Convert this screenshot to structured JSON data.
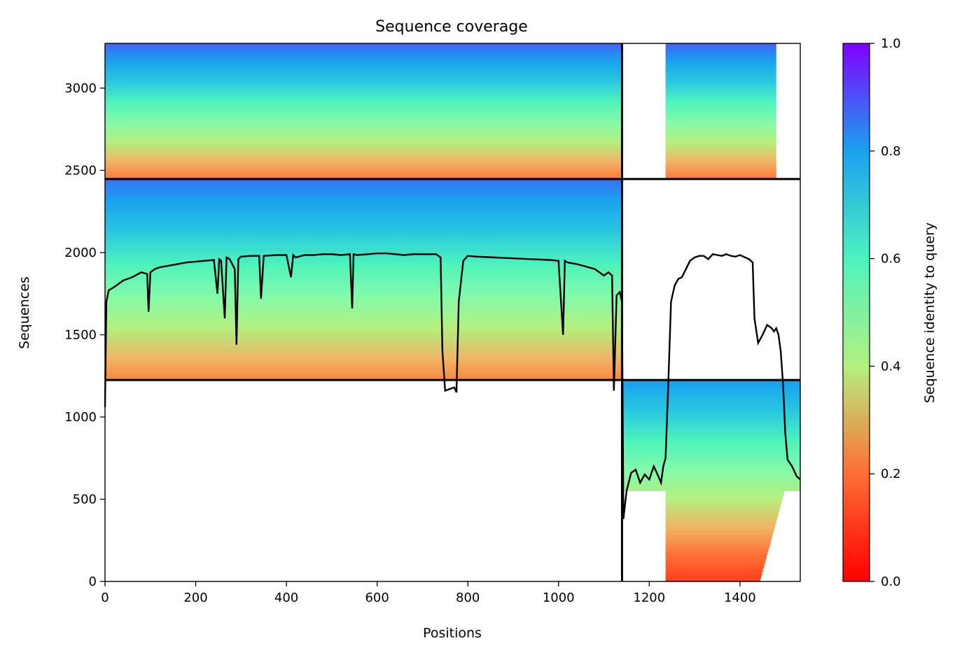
{
  "chart_data": {
    "type": "heatmap",
    "title": "Sequence coverage",
    "xlabel": "Positions",
    "ylabel": "Sequences",
    "xlim": [
      0,
      1533
    ],
    "ylim": [
      0,
      3272
    ],
    "xticks": [
      "0",
      "200",
      "400",
      "600",
      "800",
      "1000",
      "1200",
      "1400"
    ],
    "yticks": [
      "0",
      "500",
      "1000",
      "1500",
      "2000",
      "2500",
      "3000"
    ],
    "colorbar": {
      "label": "Sequence identity to query",
      "ticks": [
        "0.0",
        "0.2",
        "0.4",
        "0.6",
        "0.8",
        "1.0"
      ],
      "range": [
        0.0,
        1.0
      ],
      "colormap": "rainbow"
    },
    "chain_boundaries": {
      "x": [
        1140
      ],
      "y": [
        1225,
        2447
      ]
    },
    "blocks": [
      {
        "name": "chain-A-paired",
        "x": [
          0,
          1140
        ],
        "y": [
          2447,
          3272
        ],
        "identity_top": 0.88,
        "identity_bottom": 0.22
      },
      {
        "name": "chain-B-paired",
        "x": [
          1140,
          1533
        ],
        "y": [
          2447,
          3272
        ],
        "identity_top": 0.88,
        "identity_bottom": 0.22,
        "gaps_x": [
          [
            1140,
            1236
          ],
          [
            1480,
            1533
          ]
        ]
      },
      {
        "name": "chain-A-unpaired",
        "x": [
          0,
          1140
        ],
        "y": [
          1225,
          2447
        ],
        "identity_top": 0.86,
        "identity_bottom": 0.24
      },
      {
        "name": "chain-B-unpaired",
        "x": [
          1140,
          1533
        ],
        "y": [
          0,
          1225
        ],
        "identity_top": 0.8,
        "identity_bottom": 0.12
      }
    ],
    "coverage_line": {
      "x": [
        0,
        3,
        8,
        20,
        40,
        60,
        80,
        93,
        96,
        100,
        110,
        120,
        140,
        160,
        180,
        200,
        220,
        240,
        248,
        252,
        256,
        264,
        268,
        275,
        286,
        290,
        294,
        300,
        320,
        340,
        344,
        350,
        380,
        400,
        410,
        415,
        420,
        440,
        460,
        480,
        500,
        520,
        540,
        545,
        548,
        555,
        580,
        600,
        620,
        640,
        660,
        680,
        700,
        730,
        740,
        744,
        750,
        760,
        770,
        775,
        780,
        790,
        800,
        820,
        860,
        900,
        940,
        980,
        1000,
        1010,
        1014,
        1020,
        1040,
        1080,
        1100,
        1110,
        1118,
        1122,
        1128,
        1135,
        1140,
        1143,
        1150,
        1160,
        1170,
        1180,
        1190,
        1200,
        1210,
        1220,
        1226,
        1231,
        1236,
        1242,
        1248,
        1256,
        1264,
        1272,
        1290,
        1300,
        1310,
        1320,
        1330,
        1340,
        1350,
        1360,
        1370,
        1380,
        1390,
        1400,
        1420,
        1428,
        1432,
        1440,
        1450,
        1460,
        1470,
        1475,
        1480,
        1485,
        1490,
        1495,
        1500,
        1505,
        1515,
        1525,
        1533
      ],
      "y": [
        1060,
        1700,
        1770,
        1790,
        1830,
        1850,
        1880,
        1870,
        1640,
        1880,
        1900,
        1910,
        1920,
        1930,
        1940,
        1945,
        1950,
        1955,
        1750,
        1960,
        1950,
        1600,
        1970,
        1960,
        1900,
        1440,
        1960,
        1975,
        1980,
        1980,
        1720,
        1980,
        1985,
        1985,
        1850,
        1985,
        1970,
        1985,
        1985,
        1990,
        1990,
        1985,
        1990,
        1660,
        1990,
        1985,
        1990,
        1995,
        1995,
        1990,
        1985,
        1990,
        1990,
        1990,
        1970,
        1400,
        1160,
        1170,
        1180,
        1150,
        1700,
        1950,
        1980,
        1975,
        1970,
        1965,
        1960,
        1955,
        1950,
        1500,
        1950,
        1940,
        1930,
        1900,
        1860,
        1880,
        1860,
        1160,
        1740,
        1760,
        1700,
        380,
        550,
        660,
        680,
        600,
        650,
        620,
        700,
        640,
        600,
        700,
        750,
        1200,
        1700,
        1800,
        1840,
        1850,
        1950,
        1970,
        1980,
        1980,
        1960,
        1990,
        1985,
        1980,
        1990,
        1980,
        1975,
        1985,
        1960,
        1940,
        1600,
        1450,
        1500,
        1560,
        1540,
        1520,
        1540,
        1500,
        1400,
        1200,
        900,
        740,
        700,
        640,
        620,
        600,
        550
      ]
    }
  }
}
